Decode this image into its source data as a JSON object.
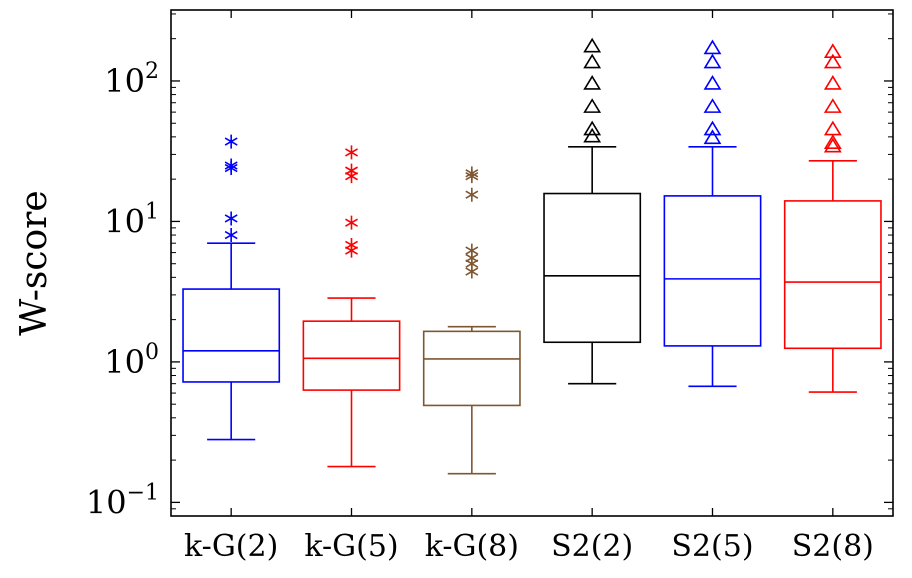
{
  "chart_data": {
    "type": "box",
    "ylabel": "W-score",
    "xlabel": "",
    "yscale": "log",
    "ylim": [
      0.08,
      320
    ],
    "yticks": [
      {
        "value": 0.1,
        "base": "10",
        "exp": "−1"
      },
      {
        "value": 1,
        "base": "10",
        "exp": "0"
      },
      {
        "value": 10,
        "base": "10",
        "exp": "1"
      },
      {
        "value": 100,
        "base": "10",
        "exp": "2"
      }
    ],
    "categories": [
      "k-G(2)",
      "k-G(5)",
      "k-G(8)",
      "S2(2)",
      "S2(5)",
      "S2(8)"
    ],
    "series": [
      {
        "category": "k-G(2)",
        "color": "#0000ff",
        "marker": "star",
        "whisker_low": 0.28,
        "q1": 0.72,
        "median": 1.2,
        "q3": 3.3,
        "whisker_high": 7.0,
        "outliers": [
          8.0,
          10.5,
          24.0,
          25.0,
          37.0
        ]
      },
      {
        "category": "k-G(5)",
        "color": "#ff0000",
        "marker": "star",
        "whisker_low": 0.18,
        "q1": 0.63,
        "median": 1.06,
        "q3": 1.95,
        "whisker_high": 2.85,
        "outliers": [
          6.2,
          6.8,
          9.8,
          21.0,
          23.0,
          31.0
        ]
      },
      {
        "category": "k-G(8)",
        "color": "#7f5630",
        "marker": "star",
        "whisker_low": 0.16,
        "q1": 0.49,
        "median": 1.05,
        "q3": 1.65,
        "whisker_high": 1.78,
        "outliers": [
          4.4,
          5.0,
          5.5,
          6.2,
          15.5,
          21.0,
          22.0
        ]
      },
      {
        "category": "S2(2)",
        "color": "#000000",
        "marker": "triangle",
        "whisker_low": 0.7,
        "q1": 1.38,
        "median": 4.1,
        "q3": 15.8,
        "whisker_high": 34.0,
        "outliers": [
          40.0,
          45.0,
          65.0,
          95.0,
          135.0,
          175.0
        ]
      },
      {
        "category": "S2(5)",
        "color": "#0000ff",
        "marker": "triangle",
        "whisker_low": 0.67,
        "q1": 1.3,
        "median": 3.9,
        "q3": 15.2,
        "whisker_high": 34.0,
        "outliers": [
          39.0,
          45.0,
          65.0,
          95.0,
          135.0,
          170.0
        ]
      },
      {
        "category": "S2(8)",
        "color": "#ff0000",
        "marker": "triangle",
        "whisker_low": 0.61,
        "q1": 1.25,
        "median": 3.7,
        "q3": 14.0,
        "whisker_high": 27.0,
        "outliers": [
          34.0,
          36.0,
          45.0,
          65.0,
          95.0,
          135.0,
          160.0
        ]
      }
    ],
    "grid": false,
    "legend": "none"
  }
}
